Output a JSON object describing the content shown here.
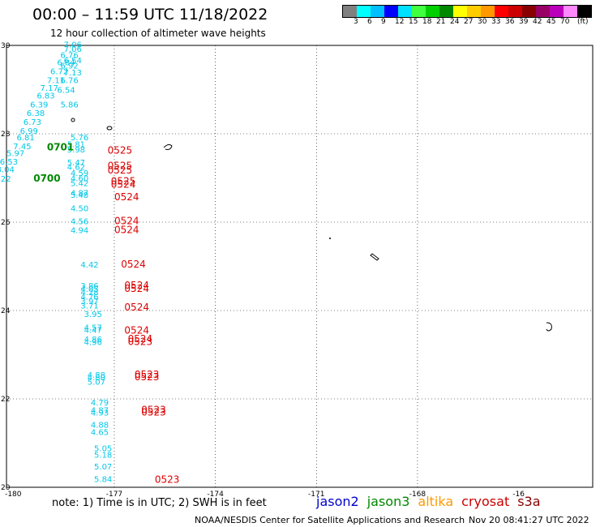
{
  "title": "00:00 – 11:59 UTC 11/18/2022",
  "subtitle": "12 hour collection of altimeter wave heights",
  "legend": {
    "unit": "(ft)",
    "colors": [
      "#808080",
      "#00ffff",
      "#00bfff",
      "#0000ff",
      "#00e0ff",
      "#40ff40",
      "#00d000",
      "#008800",
      "#ffff00",
      "#ffcc00",
      "#ff9900",
      "#ff0000",
      "#cc0000",
      "#880000",
      "#990066",
      "#bb00bb",
      "#ff88ff",
      "#000000"
    ],
    "labels": [
      "3",
      "6",
      "9",
      "12",
      "15",
      "18",
      "21",
      "24",
      "27",
      "30",
      "33",
      "36",
      "39",
      "42",
      "45",
      "70"
    ]
  },
  "axes": {
    "lon_ticks": [
      "-180",
      "-177",
      "-174",
      "-171",
      "-168",
      "-16"
    ],
    "lat_ticks": [
      "30",
      "28",
      "26",
      "24",
      "22",
      "20"
    ]
  },
  "chart_data": {
    "type": "scatter",
    "cyan_obs": [
      {
        "lon": -178.5,
        "lat": 29.95,
        "v": "7.06"
      },
      {
        "lon": -178.5,
        "lat": 29.85,
        "v": "7.06"
      },
      {
        "lon": -178.6,
        "lat": 29.72,
        "v": "6.76"
      },
      {
        "lon": -178.5,
        "lat": 29.6,
        "v": "6.54"
      },
      {
        "lon": -178.7,
        "lat": 29.55,
        "v": "6.84"
      },
      {
        "lon": -178.6,
        "lat": 29.48,
        "v": "6.92"
      },
      {
        "lon": -178.9,
        "lat": 29.35,
        "v": "6.72"
      },
      {
        "lon": -178.5,
        "lat": 29.32,
        "v": "7.13"
      },
      {
        "lon": -179.0,
        "lat": 29.15,
        "v": "7.11"
      },
      {
        "lon": -178.6,
        "lat": 29.15,
        "v": "6.76"
      },
      {
        "lon": -179.2,
        "lat": 28.97,
        "v": "7.17"
      },
      {
        "lon": -178.7,
        "lat": 28.93,
        "v": "6.54"
      },
      {
        "lon": -179.3,
        "lat": 28.8,
        "v": "6.83"
      },
      {
        "lon": -179.5,
        "lat": 28.6,
        "v": "6.39"
      },
      {
        "lon": -178.6,
        "lat": 28.6,
        "v": "5.86"
      },
      {
        "lon": -179.6,
        "lat": 28.4,
        "v": "6.38"
      },
      {
        "lon": -179.7,
        "lat": 28.2,
        "v": "6.73"
      },
      {
        "lon": -179.8,
        "lat": 28.0,
        "v": "6.99"
      },
      {
        "lon": -179.9,
        "lat": 27.85,
        "v": "6.81"
      },
      {
        "lon": -178.3,
        "lat": 27.85,
        "v": "5.76"
      },
      {
        "lon": -180.0,
        "lat": 27.65,
        "v": "7.45"
      },
      {
        "lon": -178.4,
        "lat": 27.7,
        "v": "5.81"
      },
      {
        "lon": -178.4,
        "lat": 27.58,
        "v": "5.98"
      },
      {
        "lon": -180.2,
        "lat": 27.5,
        "v": "5.97"
      },
      {
        "lon": -180.4,
        "lat": 27.3,
        "v": "6.53"
      },
      {
        "lon": -178.4,
        "lat": 27.28,
        "v": "5.47"
      },
      {
        "lon": -178.4,
        "lat": 27.18,
        "v": "4.62"
      },
      {
        "lon": -180.5,
        "lat": 27.13,
        "v": "8.04"
      },
      {
        "lon": -178.3,
        "lat": 27.05,
        "v": "4.59"
      },
      {
        "lon": -180.6,
        "lat": 26.92,
        "v": "6.22"
      },
      {
        "lon": -178.3,
        "lat": 26.93,
        "v": "4.60"
      },
      {
        "lon": -178.3,
        "lat": 26.82,
        "v": "5.42"
      },
      {
        "lon": -178.3,
        "lat": 26.6,
        "v": "4.87"
      },
      {
        "lon": -178.3,
        "lat": 26.55,
        "v": "5.48"
      },
      {
        "lon": -178.3,
        "lat": 26.25,
        "v": "4.50"
      },
      {
        "lon": -178.3,
        "lat": 25.95,
        "v": "4.56"
      },
      {
        "lon": -178.3,
        "lat": 25.75,
        "v": "4.94"
      },
      {
        "lon": -178.0,
        "lat": 24.97,
        "v": "4.42"
      },
      {
        "lon": -178.0,
        "lat": 24.5,
        "v": "3.86"
      },
      {
        "lon": -178.0,
        "lat": 24.42,
        "v": "4.05"
      },
      {
        "lon": -178.0,
        "lat": 24.35,
        "v": "4.28"
      },
      {
        "lon": -178.0,
        "lat": 24.25,
        "v": "4.76"
      },
      {
        "lon": -178.0,
        "lat": 24.15,
        "v": "3.97"
      },
      {
        "lon": -178.0,
        "lat": 24.05,
        "v": "3.71"
      },
      {
        "lon": -177.9,
        "lat": 23.85,
        "v": "3.95"
      },
      {
        "lon": -177.9,
        "lat": 23.55,
        "v": "4.57"
      },
      {
        "lon": -177.9,
        "lat": 23.5,
        "v": "4.47"
      },
      {
        "lon": -177.9,
        "lat": 23.28,
        "v": "4.86"
      },
      {
        "lon": -177.9,
        "lat": 23.22,
        "v": "4.96"
      },
      {
        "lon": -177.8,
        "lat": 22.48,
        "v": "4.88"
      },
      {
        "lon": -177.8,
        "lat": 22.42,
        "v": "4.80"
      },
      {
        "lon": -177.8,
        "lat": 22.32,
        "v": "5.07"
      },
      {
        "lon": -177.7,
        "lat": 21.85,
        "v": "4.79"
      },
      {
        "lon": -177.7,
        "lat": 21.68,
        "v": "4.87"
      },
      {
        "lon": -177.7,
        "lat": 21.62,
        "v": "4.93"
      },
      {
        "lon": -177.7,
        "lat": 21.35,
        "v": "4.88"
      },
      {
        "lon": -177.7,
        "lat": 21.18,
        "v": "4.65"
      },
      {
        "lon": -177.6,
        "lat": 20.82,
        "v": "5.05"
      },
      {
        "lon": -177.6,
        "lat": 20.67,
        "v": "5.18"
      },
      {
        "lon": -177.6,
        "lat": 20.4,
        "v": "5.07"
      },
      {
        "lon": -177.6,
        "lat": 20.12,
        "v": "5.84"
      }
    ],
    "cryosat_time": [
      {
        "lon": -177.2,
        "lat": 27.55,
        "v": "0525"
      },
      {
        "lon": -177.2,
        "lat": 27.2,
        "v": "0525"
      },
      {
        "lon": -177.2,
        "lat": 27.1,
        "v": "0525"
      },
      {
        "lon": -177.1,
        "lat": 26.85,
        "v": "0525"
      },
      {
        "lon": -177.1,
        "lat": 26.78,
        "v": "0524"
      },
      {
        "lon": -177.0,
        "lat": 26.5,
        "v": "0524"
      },
      {
        "lon": -177.0,
        "lat": 25.95,
        "v": "0524"
      },
      {
        "lon": -177.0,
        "lat": 25.75,
        "v": "0524"
      },
      {
        "lon": -176.8,
        "lat": 24.97,
        "v": "0524"
      },
      {
        "lon": -176.7,
        "lat": 24.5,
        "v": "0524"
      },
      {
        "lon": -176.7,
        "lat": 24.42,
        "v": "0524"
      },
      {
        "lon": -176.7,
        "lat": 24.0,
        "v": "0524"
      },
      {
        "lon": -176.7,
        "lat": 23.48,
        "v": "0524"
      },
      {
        "lon": -176.6,
        "lat": 23.28,
        "v": "0524"
      },
      {
        "lon": -176.6,
        "lat": 23.22,
        "v": "0523"
      },
      {
        "lon": -176.4,
        "lat": 22.48,
        "v": "0523"
      },
      {
        "lon": -176.4,
        "lat": 22.42,
        "v": "0523"
      },
      {
        "lon": -176.2,
        "lat": 21.68,
        "v": "0523"
      },
      {
        "lon": -176.2,
        "lat": 21.62,
        "v": "0523"
      },
      {
        "lon": -175.8,
        "lat": 20.1,
        "v": "0523"
      }
    ],
    "jason3_time": [
      {
        "lon": -179.0,
        "lat": 27.62,
        "v": "0701"
      },
      {
        "lon": -179.4,
        "lat": 26.92,
        "v": "0700"
      }
    ]
  },
  "note": "note:  1) Time is in UTC; 2) SWH is in feet",
  "satellites": [
    {
      "name": "jason2",
      "color": "#0000cc"
    },
    {
      "name": "jason3",
      "color": "#008800"
    },
    {
      "name": "altika",
      "color": "#ff9900"
    },
    {
      "name": "cryosat",
      "color": "#cc0000"
    },
    {
      "name": "s3a",
      "color": "#880000"
    }
  ],
  "credit": "NOAA/NESDIS Center for Satellite Applications and Research",
  "timestamp": "Nov 20 08:41:27 UTC 2022"
}
